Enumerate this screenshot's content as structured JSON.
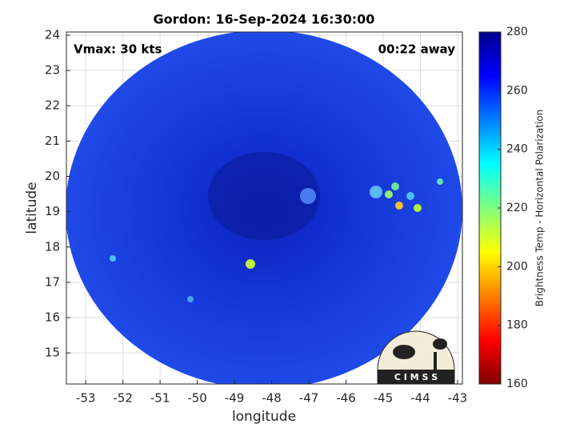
{
  "chart_data": {
    "type": "image",
    "title": "Gordon: 16-Sep-2024 16:30:00",
    "xlabel": "longitude",
    "ylabel": "latitude",
    "annotations": [
      "Vmax: 30 kts",
      "00:22 away"
    ],
    "logo": "C I M S S",
    "xlim": [
      -53.52,
      -42.87
    ],
    "ylim": [
      14.12,
      24.09
    ],
    "xticks": [
      -53,
      -52,
      -51,
      -50,
      -49,
      -48,
      -47,
      -46,
      -45,
      -44,
      -43
    ],
    "yticks": [
      15,
      16,
      17,
      18,
      19,
      20,
      21,
      22,
      23,
      24
    ],
    "grid": true,
    "colorbar": {
      "label": "Brightness Temp - Horizontal Polarization",
      "colormap": "jet",
      "lim": [
        160,
        280
      ],
      "ticks": [
        160,
        180,
        200,
        220,
        240,
        260,
        280
      ]
    }
  }
}
